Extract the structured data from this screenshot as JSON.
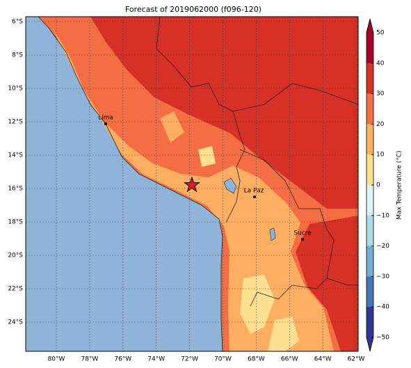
{
  "title": "Forecast of 2019062000 (f096-120)",
  "lat_labels": [
    "6°S",
    "8°S",
    "10°S",
    "12°S",
    "14°S",
    "16°S",
    "18°S",
    "20°S",
    "22°S",
    "24°S"
  ],
  "lon_labels": [
    "80°W",
    "78°W",
    "76°W",
    "74°W",
    "72°W",
    "70°W",
    "68°W",
    "66°W",
    "64°W",
    "62°W"
  ],
  "places": [
    {
      "label": "Lima"
    },
    {
      "label": "La Paz"
    },
    {
      "label": "Sucre"
    }
  ],
  "colorbar": {
    "label": "Max Temperature (°C)",
    "ticks": [
      "50",
      "40",
      "30",
      "20",
      "10",
      "0",
      "−10",
      "−20",
      "−30",
      "−40",
      "−50"
    ]
  }
}
